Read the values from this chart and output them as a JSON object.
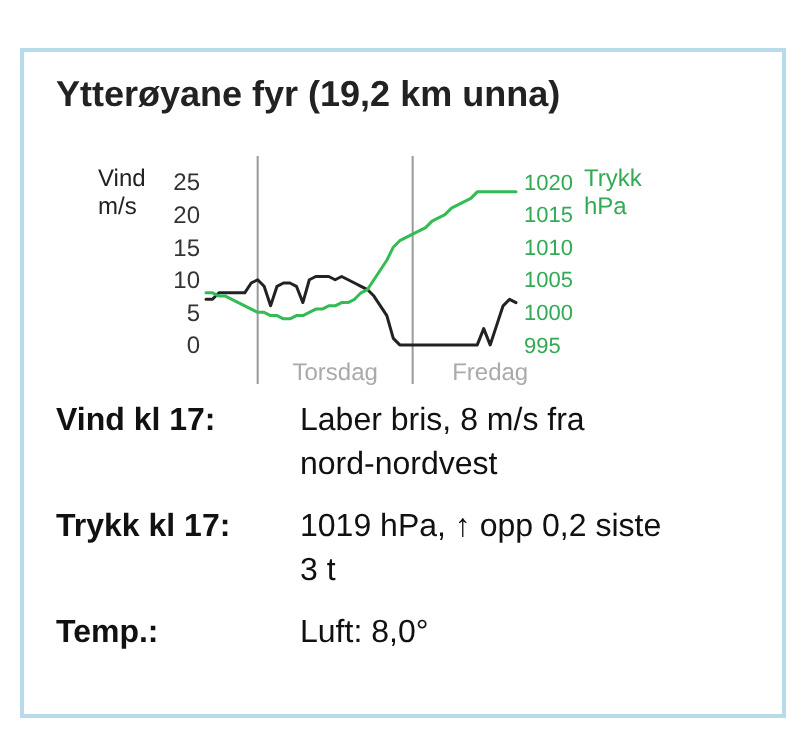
{
  "chart_data": {
    "type": "line",
    "title": "Ytterøyane fyr (19,2 km unna)",
    "ylabel": "Vind m/s",
    "y2label": "Trykk hPa",
    "categories": [
      null,
      null,
      null,
      null,
      null,
      null,
      null,
      null,
      null,
      null,
      null,
      null,
      null,
      null,
      null,
      null,
      null,
      null,
      null,
      null,
      "Torsdag",
      null,
      null,
      null,
      null,
      null,
      null,
      null,
      null,
      null,
      null,
      null,
      null,
      null,
      null,
      null,
      null,
      null,
      null,
      null,
      null,
      null,
      null,
      null,
      "Fredag",
      null,
      null,
      null,
      null
    ],
    "ylim": [
      -6,
      29
    ],
    "yticks": [
      0,
      5,
      10,
      15,
      20,
      25
    ],
    "y2lim": [
      989,
      1024
    ],
    "y2ticks": [
      995,
      1000,
      1005,
      1010,
      1015,
      1020
    ],
    "series": [
      {
        "color": "#222222",
        "values": [
          7,
          7,
          8,
          8,
          8,
          8,
          8,
          9.5,
          10,
          9,
          6,
          9,
          9.5,
          9.5,
          9,
          6.5,
          10,
          10.5,
          10.5,
          10.5,
          10,
          10.5,
          10,
          9.5,
          9,
          8.5,
          7.5,
          6,
          4.5,
          1,
          0,
          0,
          0,
          0,
          0,
          0,
          0,
          0,
          0,
          0,
          0,
          0,
          0,
          2.5,
          0,
          3,
          6,
          7,
          6.5
        ]
      },
      {
        "color": "#33bb55",
        "axis": "y2",
        "values": [
          1003,
          1003,
          1002.5,
          1002.5,
          1002,
          1001.5,
          1001,
          1000.5,
          1000,
          1000,
          999.5,
          999.5,
          999,
          999,
          999.5,
          999.5,
          1000,
          1000.5,
          1000.5,
          1001,
          1001,
          1001.5,
          1001.5,
          1002,
          1003,
          1003.5,
          1005,
          1006.5,
          1008,
          1010,
          1011,
          1011.5,
          1012,
          1012.5,
          1013,
          1014,
          1014.5,
          1015,
          1016,
          1016.5,
          1017,
          1017.5,
          1018.5,
          1018.5,
          1018.5,
          1018.5,
          1018.5,
          1018.5,
          1018.5
        ]
      }
    ],
    "annotations": [
      "Vind kl 17:",
      "Laber bris, 8 m/s fra nord-nordvest",
      "Trykk kl 17:",
      "1019 hPa, ↑ opp 0,2 siste 3 t",
      "Temp.:",
      "Luft: 8,0°"
    ]
  }
}
